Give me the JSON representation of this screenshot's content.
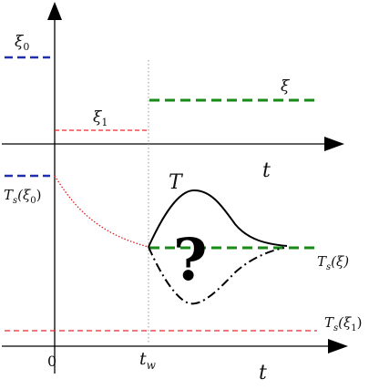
{
  "colors": {
    "axis": "#000000",
    "xi0_line": "#1f2fb0",
    "xi1_line": "#e8262b",
    "xi_line": "#178a17",
    "curve": "#000000",
    "relaxation_curve": "#d92020",
    "tw_guide": "#9a9a9a"
  },
  "labels": {
    "xi0": "ξ",
    "xi0_sub": "0",
    "xi1": "ξ",
    "xi1_sub": "1",
    "xi": "ξ",
    "t_top": "t",
    "t_bottom": "t",
    "T": "T",
    "question": "?",
    "Ts_xi0_main": "T",
    "Ts_xi0_sub": "s",
    "Ts_xi0_arg": "(ξ",
    "Ts_xi0_argsub": "0",
    "Ts_xi0_close": ")",
    "Ts_xi_main": "T",
    "Ts_xi_sub": "s",
    "Ts_xi_arg": "(ξ)",
    "Ts_xi1_main": "T",
    "Ts_xi1_sub": "s",
    "Ts_xi1_arg": "(ξ",
    "Ts_xi1_argsub": "1",
    "Ts_xi1_close": ")",
    "origin": "0",
    "tw_main": "t",
    "tw_sub": "w"
  },
  "icons": {
    "top_arrow": "arrow-up-icon",
    "right_arrow_top": "arrow-right-icon",
    "right_arrow_bottom": "arrow-right-icon"
  }
}
